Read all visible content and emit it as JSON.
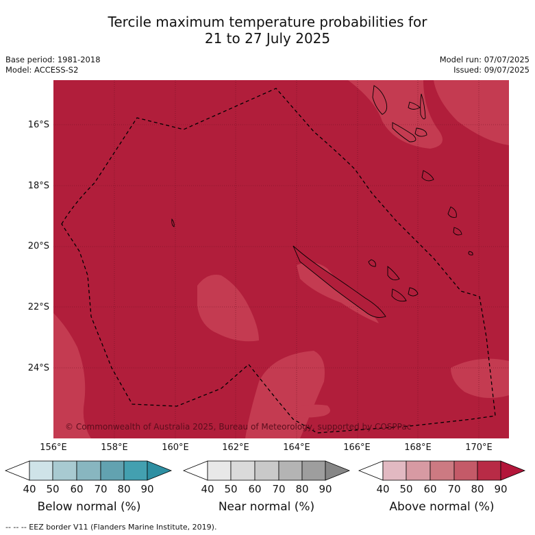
{
  "title": {
    "line1": "Tercile maximum temperature probabilities for",
    "line2": "21 to 27 July 2025"
  },
  "meta_left": {
    "base_period": "Base period: 1981-2018",
    "model": "Model: ACCESS-S2"
  },
  "meta_right": {
    "model_run": "Model run: 07/07/2025",
    "issued": "Issued: 09/07/2025"
  },
  "map": {
    "base_color": "#b11e3b",
    "light_color": "#c43b51",
    "latitude_labels": [
      "16°S",
      "18°S",
      "20°S",
      "22°S",
      "24°S"
    ],
    "longitude_labels": [
      "156°E",
      "158°E",
      "160°E",
      "162°E",
      "164°E",
      "166°E",
      "168°E",
      "170°E"
    ],
    "copyright": "© Commonwealth of Australia 2025, Bureau of Meteorology, supported by COSPPac"
  },
  "colorbars": [
    {
      "label": "Below normal (%)",
      "ticks": [
        "40",
        "50",
        "60",
        "70",
        "80",
        "90"
      ],
      "colors": [
        "#ffffff",
        "#cfe3e8",
        "#a8cad1",
        "#88b6c0",
        "#62a2b0",
        "#43a0b0",
        "#2e8fa2"
      ]
    },
    {
      "label": "Near normal (%)",
      "ticks": [
        "40",
        "50",
        "60",
        "70",
        "80",
        "90"
      ],
      "colors": [
        "#ffffff",
        "#e8e8e8",
        "#dadada",
        "#c9c9c9",
        "#b4b4b4",
        "#9e9e9e",
        "#868686"
      ]
    },
    {
      "label": "Above normal (%)",
      "ticks": [
        "40",
        "50",
        "60",
        "70",
        "80",
        "90"
      ],
      "colors": [
        "#ffffff",
        "#e2b9c2",
        "#d79a a3",
        "#cc7a82",
        "#c45a68",
        "#b82b46",
        "#b3163a"
      ]
    }
  ],
  "footnote": "--  --  -- EEZ border V11 (Flanders Marine Institute, 2019)."
}
